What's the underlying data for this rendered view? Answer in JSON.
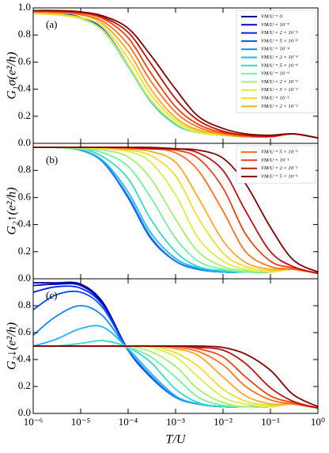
{
  "chart_data": [
    {
      "type": "line",
      "label": "(a)",
      "ylabel": "G₁σ(e²/h)",
      "log_x": true,
      "legend": "upper right",
      "xlim": [
        1e-06,
        1
      ],
      "xticks": [
        1e-06,
        1e-05,
        0.0001,
        0.001,
        0.01,
        0.1,
        1
      ],
      "ylim": [
        0,
        1
      ],
      "yticks": [
        {
          "value": 0,
          "label": "0.0"
        },
        {
          "value": 0.2,
          "label": "0.2"
        },
        {
          "value": 0.4,
          "label": "0.4"
        },
        {
          "value": 0.6,
          "label": "0.6"
        },
        {
          "value": 0.8,
          "label": "0.8"
        },
        {
          "value": 1,
          "label": "1.0"
        }
      ],
      "x": [
        1e-06,
        3e-06,
        1e-05,
        3e-05,
        0.0001,
        0.0003,
        0.001,
        0.003,
        0.01,
        0.03,
        0.1,
        0.3,
        1
      ],
      "series": [
        {
          "name": "VM/U = 0",
          "color": "#00008b",
          "values": [
            0.97,
            0.96,
            0.93,
            0.84,
            0.58,
            0.31,
            0.14,
            0.08,
            0.06,
            0.05,
            0.05,
            0.07,
            0.04
          ]
        },
        {
          "name": "VM/U = 10⁻⁵",
          "color": "#0000cd",
          "values": [
            0.97,
            0.96,
            0.93,
            0.84,
            0.58,
            0.31,
            0.14,
            0.08,
            0.06,
            0.05,
            0.05,
            0.07,
            0.04
          ]
        },
        {
          "name": "VM/U = 2 × 10⁻⁵",
          "color": "#0022e6",
          "values": [
            0.97,
            0.96,
            0.93,
            0.84,
            0.58,
            0.31,
            0.14,
            0.08,
            0.06,
            0.05,
            0.05,
            0.07,
            0.04
          ]
        },
        {
          "name": "VM/U = 5 × 10⁻⁵",
          "color": "#0052f2",
          "values": [
            0.97,
            0.96,
            0.93,
            0.84,
            0.58,
            0.31,
            0.14,
            0.08,
            0.06,
            0.05,
            0.05,
            0.07,
            0.04
          ]
        },
        {
          "name": "VM/U = 10⁻⁴",
          "color": "#1284ff",
          "values": [
            0.96,
            0.955,
            0.92,
            0.83,
            0.57,
            0.31,
            0.14,
            0.08,
            0.06,
            0.05,
            0.05,
            0.07,
            0.04
          ]
        },
        {
          "name": "VM/U = 2 × 10⁻⁴",
          "color": "#22b4ff",
          "values": [
            0.96,
            0.955,
            0.92,
            0.83,
            0.57,
            0.31,
            0.14,
            0.08,
            0.06,
            0.05,
            0.05,
            0.07,
            0.04
          ]
        },
        {
          "name": "VM/U = 5 × 10⁻⁴",
          "color": "#30dcc8",
          "values": [
            0.96,
            0.955,
            0.92,
            0.83,
            0.57,
            0.31,
            0.14,
            0.08,
            0.06,
            0.05,
            0.05,
            0.07,
            0.04
          ]
        },
        {
          "name": "VM/U = 10⁻³",
          "color": "#74f0a0",
          "values": [
            0.96,
            0.95,
            0.92,
            0.83,
            0.58,
            0.32,
            0.15,
            0.08,
            0.06,
            0.05,
            0.05,
            0.07,
            0.04
          ]
        },
        {
          "name": "VM/U = 2 × 10⁻³",
          "color": "#a4f070",
          "values": [
            0.96,
            0.95,
            0.92,
            0.83,
            0.58,
            0.32,
            0.15,
            0.08,
            0.06,
            0.05,
            0.05,
            0.07,
            0.04
          ]
        },
        {
          "name": "VM/U = 5 × 10⁻³",
          "color": "#d4f04c",
          "values": [
            0.96,
            0.95,
            0.92,
            0.83,
            0.58,
            0.32,
            0.15,
            0.08,
            0.06,
            0.05,
            0.05,
            0.07,
            0.04
          ]
        },
        {
          "name": "VM/U = 10⁻²",
          "color": "#f4dc2c",
          "values": [
            0.96,
            0.95,
            0.93,
            0.86,
            0.63,
            0.36,
            0.17,
            0.09,
            0.06,
            0.05,
            0.05,
            0.07,
            0.04
          ]
        },
        {
          "name": "VM/U = 2 × 10⁻²",
          "color": "#ffa820",
          "values": [
            0.97,
            0.96,
            0.95,
            0.88,
            0.68,
            0.4,
            0.19,
            0.1,
            0.07,
            0.05,
            0.05,
            0.07,
            0.04
          ]
        },
        {
          "color": "#ff7020",
          "values": [
            0.97,
            0.97,
            0.95,
            0.9,
            0.73,
            0.46,
            0.23,
            0.12,
            0.07,
            0.05,
            0.05,
            0.07,
            0.04
          ]
        },
        {
          "color": "#f04010",
          "values": [
            0.98,
            0.97,
            0.96,
            0.92,
            0.78,
            0.52,
            0.27,
            0.14,
            0.08,
            0.06,
            0.05,
            0.07,
            0.04
          ]
        },
        {
          "color": "#c01010",
          "values": [
            0.98,
            0.98,
            0.97,
            0.93,
            0.82,
            0.59,
            0.33,
            0.17,
            0.09,
            0.06,
            0.05,
            0.07,
            0.04
          ]
        },
        {
          "color": "#800000",
          "values": [
            0.98,
            0.98,
            0.97,
            0.94,
            0.85,
            0.65,
            0.4,
            0.2,
            0.11,
            0.07,
            0.06,
            0.07,
            0.04
          ]
        }
      ]
    },
    {
      "type": "line",
      "label": "(b)",
      "ylabel": "G₂↑(e²/h)",
      "log_x": true,
      "legend": "upper right",
      "xlim": [
        1e-06,
        1
      ],
      "xticks": [
        1e-06,
        1e-05,
        0.0001,
        0.001,
        0.01,
        0.1,
        1
      ],
      "ylim": [
        0,
        1
      ],
      "yticks": [
        {
          "value": 0,
          "label": "0.0"
        },
        {
          "value": 0.2,
          "label": "0.2"
        },
        {
          "value": 0.4,
          "label": "0.4"
        },
        {
          "value": 0.6,
          "label": "0.6"
        },
        {
          "value": 0.8,
          "label": "0.8"
        }
      ],
      "x": [
        1e-06,
        3e-06,
        1e-05,
        3e-05,
        0.0001,
        0.0003,
        0.001,
        0.003,
        0.01,
        0.03,
        0.1,
        0.3,
        1
      ],
      "series": [
        {
          "color": "#00008b",
          "values": [
            0.97,
            0.97,
            0.95,
            0.86,
            0.6,
            0.3,
            0.13,
            0.07,
            0.05,
            0.05,
            0.05,
            0.07,
            0.04
          ]
        },
        {
          "color": "#0000cd",
          "values": [
            0.97,
            0.97,
            0.95,
            0.86,
            0.6,
            0.3,
            0.13,
            0.07,
            0.05,
            0.05,
            0.05,
            0.07,
            0.04
          ]
        },
        {
          "color": "#0022e6",
          "values": [
            0.97,
            0.97,
            0.95,
            0.86,
            0.6,
            0.3,
            0.13,
            0.07,
            0.05,
            0.05,
            0.05,
            0.07,
            0.04
          ]
        },
        {
          "color": "#0052f2",
          "values": [
            0.97,
            0.97,
            0.95,
            0.86,
            0.6,
            0.3,
            0.13,
            0.07,
            0.05,
            0.05,
            0.05,
            0.07,
            0.04
          ]
        },
        {
          "color": "#1284ff",
          "values": [
            0.97,
            0.97,
            0.95,
            0.86,
            0.61,
            0.31,
            0.13,
            0.07,
            0.05,
            0.05,
            0.05,
            0.07,
            0.04
          ]
        },
        {
          "color": "#22b4ff",
          "values": [
            0.97,
            0.97,
            0.95,
            0.87,
            0.64,
            0.34,
            0.15,
            0.08,
            0.05,
            0.05,
            0.05,
            0.07,
            0.04
          ]
        },
        {
          "color": "#30dcc8",
          "values": [
            0.97,
            0.97,
            0.96,
            0.9,
            0.74,
            0.44,
            0.2,
            0.09,
            0.06,
            0.05,
            0.05,
            0.07,
            0.04
          ]
        },
        {
          "color": "#74f0a0",
          "values": [
            0.97,
            0.97,
            0.96,
            0.93,
            0.83,
            0.6,
            0.3,
            0.13,
            0.07,
            0.05,
            0.05,
            0.07,
            0.04
          ]
        },
        {
          "color": "#a4f070",
          "values": [
            0.97,
            0.97,
            0.96,
            0.95,
            0.9,
            0.74,
            0.44,
            0.2,
            0.09,
            0.06,
            0.05,
            0.07,
            0.04
          ]
        },
        {
          "color": "#d4f04c",
          "values": [
            0.97,
            0.97,
            0.97,
            0.96,
            0.94,
            0.86,
            0.62,
            0.3,
            0.13,
            0.07,
            0.05,
            0.07,
            0.04
          ]
        },
        {
          "color": "#f4dc2c",
          "values": [
            0.97,
            0.97,
            0.97,
            0.96,
            0.95,
            0.91,
            0.76,
            0.45,
            0.19,
            0.09,
            0.06,
            0.07,
            0.04
          ]
        },
        {
          "color": "#ffa820",
          "values": [
            0.97,
            0.97,
            0.97,
            0.97,
            0.96,
            0.94,
            0.86,
            0.6,
            0.28,
            0.12,
            0.07,
            0.07,
            0.04
          ]
        },
        {
          "name": "VM/U = 5 × 10⁻²",
          "color": "#ff7020",
          "values": [
            0.97,
            0.97,
            0.97,
            0.97,
            0.96,
            0.96,
            0.93,
            0.8,
            0.5,
            0.2,
            0.09,
            0.07,
            0.04
          ]
        },
        {
          "name": "VM/U = 10⁻¹",
          "color": "#f04010",
          "values": [
            0.97,
            0.97,
            0.97,
            0.97,
            0.97,
            0.96,
            0.95,
            0.89,
            0.67,
            0.33,
            0.13,
            0.08,
            0.04
          ]
        },
        {
          "name": "VM/U = 2 × 10⁻¹",
          "color": "#c01010",
          "values": [
            0.97,
            0.97,
            0.97,
            0.97,
            0.97,
            0.96,
            0.96,
            0.93,
            0.8,
            0.5,
            0.2,
            0.09,
            0.04
          ]
        },
        {
          "name": "VM/U = 5 × 10⁻¹",
          "color": "#800000",
          "values": [
            0.97,
            0.97,
            0.97,
            0.97,
            0.97,
            0.97,
            0.96,
            0.95,
            0.89,
            0.7,
            0.38,
            0.14,
            0.05
          ]
        }
      ]
    },
    {
      "type": "line",
      "label": "(c)",
      "ylabel": "G₂↓(e²/h)",
      "xlabel": "T/U",
      "log_x": true,
      "xlim": [
        1e-06,
        1
      ],
      "xticks": [
        {
          "value": 1e-06,
          "label": "10⁻⁶"
        },
        {
          "value": 1e-05,
          "label": "10⁻⁵"
        },
        {
          "value": 0.0001,
          "label": "10⁻⁴"
        },
        {
          "value": 0.001,
          "label": "10⁻³"
        },
        {
          "value": 0.01,
          "label": "10⁻²"
        },
        {
          "value": 0.1,
          "label": "10⁻¹"
        },
        {
          "value": 1,
          "label": "10⁰"
        }
      ],
      "ylim": [
        0,
        1
      ],
      "yticks": [
        {
          "value": 0,
          "label": "0.0"
        },
        {
          "value": 0.2,
          "label": "0.2"
        },
        {
          "value": 0.4,
          "label": "0.4"
        },
        {
          "value": 0.6,
          "label": "0.6"
        },
        {
          "value": 0.8,
          "label": "0.8"
        }
      ],
      "x": [
        1e-06,
        3e-06,
        1e-05,
        3e-05,
        0.0001,
        0.0003,
        0.001,
        0.003,
        0.01,
        0.03,
        0.1,
        0.3,
        1
      ],
      "series": [
        {
          "color": "#00008b",
          "values": [
            0.97,
            0.97,
            0.96,
            0.82,
            0.47,
            0.27,
            0.12,
            0.07,
            0.05,
            0.05,
            0.05,
            0.07,
            0.04
          ]
        },
        {
          "color": "#0000cd",
          "values": [
            0.95,
            0.96,
            0.95,
            0.81,
            0.47,
            0.27,
            0.12,
            0.07,
            0.05,
            0.05,
            0.05,
            0.07,
            0.04
          ]
        },
        {
          "color": "#0022e6",
          "values": [
            0.9,
            0.94,
            0.93,
            0.8,
            0.47,
            0.27,
            0.12,
            0.07,
            0.05,
            0.05,
            0.05,
            0.07,
            0.04
          ]
        },
        {
          "color": "#0052f2",
          "values": [
            0.77,
            0.88,
            0.9,
            0.78,
            0.47,
            0.27,
            0.12,
            0.07,
            0.05,
            0.05,
            0.05,
            0.07,
            0.04
          ]
        },
        {
          "color": "#1284ff",
          "values": [
            0.58,
            0.72,
            0.8,
            0.72,
            0.47,
            0.28,
            0.12,
            0.07,
            0.05,
            0.05,
            0.05,
            0.07,
            0.04
          ]
        },
        {
          "color": "#22b4ff",
          "values": [
            0.5,
            0.55,
            0.63,
            0.64,
            0.48,
            0.3,
            0.13,
            0.07,
            0.05,
            0.05,
            0.05,
            0.07,
            0.04
          ]
        },
        {
          "color": "#30dcc8",
          "values": [
            0.5,
            0.5,
            0.52,
            0.54,
            0.49,
            0.38,
            0.18,
            0.08,
            0.05,
            0.05,
            0.05,
            0.07,
            0.04
          ]
        },
        {
          "color": "#74f0a0",
          "values": [
            0.5,
            0.5,
            0.5,
            0.5,
            0.49,
            0.42,
            0.27,
            0.12,
            0.06,
            0.05,
            0.05,
            0.07,
            0.04
          ]
        },
        {
          "color": "#a4f070",
          "values": [
            0.5,
            0.5,
            0.5,
            0.5,
            0.5,
            0.46,
            0.35,
            0.18,
            0.08,
            0.05,
            0.05,
            0.07,
            0.04
          ]
        },
        {
          "color": "#d4f04c",
          "values": [
            0.5,
            0.5,
            0.5,
            0.5,
            0.5,
            0.49,
            0.42,
            0.27,
            0.12,
            0.07,
            0.05,
            0.07,
            0.04
          ]
        },
        {
          "color": "#f4dc2c",
          "values": [
            0.5,
            0.5,
            0.5,
            0.5,
            0.5,
            0.5,
            0.45,
            0.35,
            0.18,
            0.09,
            0.06,
            0.07,
            0.04
          ]
        },
        {
          "color": "#ffa820",
          "values": [
            0.5,
            0.5,
            0.5,
            0.5,
            0.5,
            0.5,
            0.48,
            0.43,
            0.27,
            0.13,
            0.07,
            0.07,
            0.04
          ]
        },
        {
          "color": "#ff7020",
          "values": [
            0.5,
            0.5,
            0.5,
            0.5,
            0.5,
            0.5,
            0.49,
            0.46,
            0.36,
            0.2,
            0.1,
            0.07,
            0.04
          ]
        },
        {
          "color": "#f04010",
          "values": [
            0.5,
            0.5,
            0.5,
            0.5,
            0.5,
            0.5,
            0.5,
            0.48,
            0.42,
            0.27,
            0.13,
            0.08,
            0.04
          ]
        },
        {
          "color": "#c01010",
          "values": [
            0.5,
            0.5,
            0.5,
            0.5,
            0.5,
            0.5,
            0.5,
            0.49,
            0.47,
            0.37,
            0.19,
            0.09,
            0.04
          ]
        },
        {
          "color": "#800000",
          "values": [
            0.5,
            0.5,
            0.5,
            0.5,
            0.5,
            0.5,
            0.5,
            0.5,
            0.49,
            0.44,
            0.32,
            0.14,
            0.05
          ]
        }
      ]
    }
  ]
}
